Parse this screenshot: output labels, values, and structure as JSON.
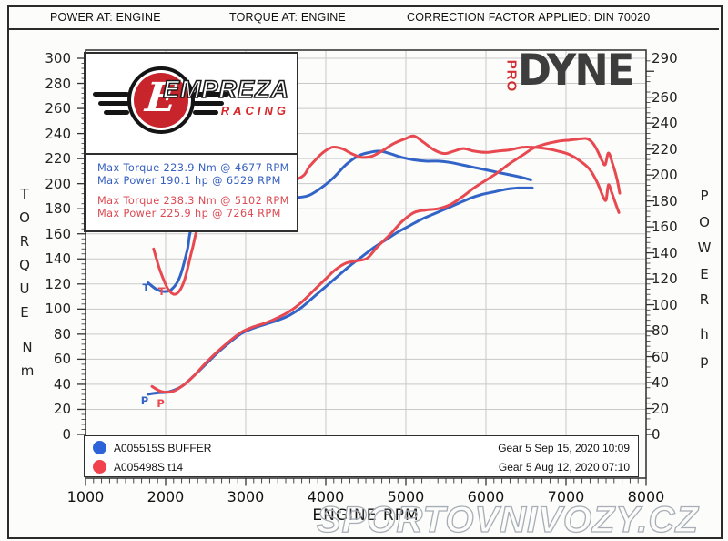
{
  "header": {
    "power_at": "POWER AT: ENGINE",
    "torque_at": "TORQUE AT: ENGINE",
    "correction": "CORRECTION FACTOR APPLIED: DIN 70020"
  },
  "empreza_logo": {
    "letter": "E",
    "brand": "EMPREZA",
    "sub": "RACING"
  },
  "prodyne_logo": {
    "pro": "PRO",
    "dyne": "DYNE"
  },
  "stats": {
    "blue_torque": "Max Torque 223.9 Nm @ 4677 RPM",
    "blue_power": "Max Power 190.1 hp @ 6529 RPM",
    "red_torque": "Max Torque 238.3 Nm @ 5102 RPM",
    "red_power": "Max Power 225.9 hp @ 7264 RPM"
  },
  "legend": {
    "rows": [
      {
        "label": "A005515S BUFFER",
        "info": "Gear 5 Sep 15, 2020 10:09",
        "color": "#2e62d8"
      },
      {
        "label": "A005498S t14",
        "info": "Gear 5 Aug 12, 2020 07:10",
        "color": "#f0414d"
      }
    ]
  },
  "watermark": "SPORTOVNIVOZY.CZ",
  "chart_data": {
    "type": "line",
    "xlabel": "ENGINE RPM",
    "x_axis": {
      "min": 1000,
      "max": 8000,
      "tick_labels": [
        1000,
        2000,
        3000,
        4000,
        5000,
        6000,
        7000,
        8000
      ],
      "minor_step": 100
    },
    "left_axis": {
      "title": "TORQUE",
      "unit": "Nm",
      "min": 0,
      "max": 300,
      "tick_labels": [
        0,
        20,
        40,
        60,
        80,
        100,
        120,
        140,
        160,
        180,
        200,
        220,
        240,
        260,
        280,
        300
      ],
      "minor_step": 4
    },
    "right_axis": {
      "title": "POWER",
      "unit": "hp",
      "min": 0,
      "max": 290,
      "tick_labels": [
        0,
        20,
        40,
        60,
        80,
        100,
        120,
        140,
        160,
        180,
        200,
        220,
        240,
        260,
        290
      ],
      "minor_step": 4
    },
    "grid": {
      "x_lines": [
        2000,
        3000,
        4000,
        5000,
        6000,
        7000
      ],
      "y_lines_torque_step": 20,
      "color": "#c9c9c9"
    },
    "series": [
      {
        "name": "A005515S BUFFER — Torque (Nm)",
        "axis": "left",
        "color": "#3264c8",
        "start_label": "T",
        "start_label_at": [
          1710,
          117
        ],
        "points": [
          [
            1780,
            121
          ],
          [
            1880,
            116
          ],
          [
            1980,
            114
          ],
          [
            2080,
            116
          ],
          [
            2180,
            126
          ],
          [
            2270,
            147
          ],
          [
            2340,
            166
          ],
          [
            2600,
            178
          ],
          [
            2950,
            184
          ],
          [
            3300,
            187
          ],
          [
            3655,
            189
          ],
          [
            3800,
            191
          ],
          [
            3950,
            197
          ],
          [
            4100,
            205
          ],
          [
            4250,
            215
          ],
          [
            4400,
            222
          ],
          [
            4550,
            225
          ],
          [
            4677,
            226
          ],
          [
            4800,
            224
          ],
          [
            4950,
            221
          ],
          [
            5100,
            219
          ],
          [
            5250,
            218
          ],
          [
            5400,
            218
          ],
          [
            5550,
            217
          ],
          [
            5700,
            215
          ],
          [
            5850,
            213
          ],
          [
            6000,
            211
          ],
          [
            6150,
            209
          ],
          [
            6300,
            207
          ],
          [
            6450,
            205
          ],
          [
            6560,
            203
          ]
        ]
      },
      {
        "name": "A005515S BUFFER — Power (hp)",
        "axis": "right",
        "color": "#3264c8",
        "start_label": "P",
        "start_label_at": [
          1690,
          26
        ],
        "points": [
          [
            1780,
            31
          ],
          [
            1900,
            32
          ],
          [
            2050,
            33
          ],
          [
            2200,
            37
          ],
          [
            2350,
            45
          ],
          [
            2500,
            54
          ],
          [
            2650,
            63
          ],
          [
            2800,
            71
          ],
          [
            2950,
            78
          ],
          [
            3100,
            82
          ],
          [
            3250,
            85
          ],
          [
            3400,
            88
          ],
          [
            3550,
            92
          ],
          [
            3700,
            98
          ],
          [
            3850,
            106
          ],
          [
            4000,
            114
          ],
          [
            4150,
            122
          ],
          [
            4300,
            130
          ],
          [
            4450,
            137
          ],
          [
            4600,
            144
          ],
          [
            4750,
            150
          ],
          [
            4900,
            156
          ],
          [
            5050,
            161
          ],
          [
            5200,
            166
          ],
          [
            5350,
            170
          ],
          [
            5500,
            174
          ],
          [
            5650,
            178
          ],
          [
            5800,
            182
          ],
          [
            5950,
            185
          ],
          [
            6100,
            187
          ],
          [
            6250,
            189
          ],
          [
            6400,
            190
          ],
          [
            6529,
            190
          ],
          [
            6580,
            190
          ]
        ]
      },
      {
        "name": "A005498S t14 — Torque (Nm)",
        "axis": "left",
        "color": "#e84850",
        "start_label": "T",
        "start_label_at": [
          1905,
          114
        ],
        "points": [
          [
            1850,
            148
          ],
          [
            1930,
            131
          ],
          [
            2030,
            116
          ],
          [
            2130,
            112
          ],
          [
            2230,
            122
          ],
          [
            2330,
            147
          ],
          [
            2430,
            168
          ],
          [
            2700,
            184
          ],
          [
            3100,
            196
          ],
          [
            3655,
            204
          ],
          [
            3800,
            214
          ],
          [
            3950,
            224
          ],
          [
            4080,
            229
          ],
          [
            4200,
            228
          ],
          [
            4320,
            224
          ],
          [
            4450,
            221
          ],
          [
            4580,
            222
          ],
          [
            4700,
            226
          ],
          [
            4850,
            232
          ],
          [
            5000,
            236
          ],
          [
            5102,
            238
          ],
          [
            5220,
            233
          ],
          [
            5350,
            227
          ],
          [
            5480,
            224
          ],
          [
            5600,
            226
          ],
          [
            5720,
            228
          ],
          [
            5850,
            226
          ],
          [
            6000,
            225
          ],
          [
            6150,
            226
          ],
          [
            6300,
            227
          ],
          [
            6450,
            229
          ],
          [
            6600,
            229
          ],
          [
            6750,
            228
          ],
          [
            6900,
            226
          ],
          [
            7050,
            223
          ],
          [
            7200,
            217
          ],
          [
            7300,
            211
          ],
          [
            7390,
            201
          ],
          [
            7460,
            190
          ],
          [
            7500,
            187
          ],
          [
            7530,
            199
          ],
          [
            7570,
            193
          ],
          [
            7620,
            184
          ],
          [
            7660,
            177
          ]
        ]
      },
      {
        "name": "A005498S t14 — Power (hp)",
        "axis": "right",
        "color": "#e84850",
        "start_label": "P",
        "start_label_at": [
          1890,
          24
        ],
        "points": [
          [
            1830,
            37
          ],
          [
            1950,
            33
          ],
          [
            2080,
            33
          ],
          [
            2200,
            37
          ],
          [
            2350,
            45
          ],
          [
            2500,
            55
          ],
          [
            2650,
            64
          ],
          [
            2800,
            72
          ],
          [
            2950,
            79
          ],
          [
            3100,
            83
          ],
          [
            3250,
            86
          ],
          [
            3400,
            90
          ],
          [
            3550,
            95
          ],
          [
            3700,
            102
          ],
          [
            3850,
            111
          ],
          [
            4000,
            120
          ],
          [
            4120,
            127
          ],
          [
            4250,
            132
          ],
          [
            4400,
            134
          ],
          [
            4520,
            136
          ],
          [
            4650,
            145
          ],
          [
            4800,
            154
          ],
          [
            4950,
            164
          ],
          [
            5100,
            171
          ],
          [
            5250,
            173
          ],
          [
            5400,
            174
          ],
          [
            5550,
            177
          ],
          [
            5700,
            183
          ],
          [
            5850,
            190
          ],
          [
            6000,
            196
          ],
          [
            6150,
            202
          ],
          [
            6300,
            209
          ],
          [
            6450,
            215
          ],
          [
            6600,
            221
          ],
          [
            6750,
            224
          ],
          [
            6900,
            226
          ],
          [
            7050,
            227
          ],
          [
            7200,
            228
          ],
          [
            7264,
            228
          ],
          [
            7330,
            225
          ],
          [
            7390,
            219
          ],
          [
            7450,
            211
          ],
          [
            7490,
            208
          ],
          [
            7530,
            217
          ],
          [
            7580,
            209
          ],
          [
            7640,
            196
          ],
          [
            7670,
            186
          ]
        ]
      }
    ]
  }
}
